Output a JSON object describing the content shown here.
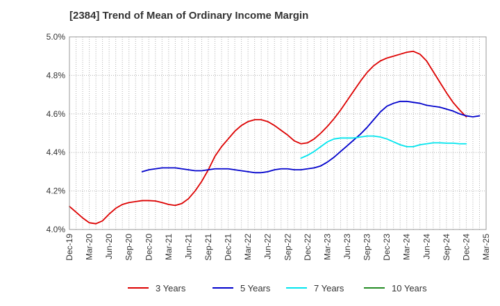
{
  "chart_data": {
    "type": "line",
    "title": "[2384]  Trend of Mean of Ordinary Income Margin",
    "xlabel": "",
    "ylabel": "",
    "x_start": "2019-12",
    "x_tick_labels": [
      "Dec-19",
      "Mar-20",
      "Jun-20",
      "Sep-20",
      "Dec-20",
      "Mar-21",
      "Jun-21",
      "Sep-21",
      "Dec-21",
      "Mar-22",
      "Jun-22",
      "Sep-22",
      "Dec-22",
      "Mar-23",
      "Jun-23",
      "Sep-23",
      "Dec-23",
      "Mar-24",
      "Jun-24",
      "Sep-24",
      "Dec-24",
      "Mar-25"
    ],
    "ylim": [
      4.0,
      5.0
    ],
    "y_ticks": [
      4.0,
      4.2,
      4.4,
      4.6,
      4.8,
      5.0
    ],
    "y_tick_labels": [
      "4.0%",
      "4.2%",
      "4.4%",
      "4.6%",
      "4.8%",
      "5.0%"
    ],
    "grid": true,
    "legend_position": "bottom",
    "series": [
      {
        "name": "3 Years",
        "color": "#dd0000",
        "start": "2019-12",
        "values": [
          4.12,
          4.09,
          4.06,
          4.035,
          4.03,
          4.045,
          4.08,
          4.11,
          4.13,
          4.14,
          4.145,
          4.15,
          4.15,
          4.148,
          4.14,
          4.13,
          4.125,
          4.135,
          4.16,
          4.2,
          4.25,
          4.31,
          4.38,
          4.43,
          4.47,
          4.51,
          4.54,
          4.56,
          4.57,
          4.57,
          4.56,
          4.54,
          4.515,
          4.49,
          4.46,
          4.445,
          4.45,
          4.47,
          4.5,
          4.535,
          4.575,
          4.62,
          4.67,
          4.72,
          4.77,
          4.815,
          4.85,
          4.875,
          4.89,
          4.9,
          4.91,
          4.92,
          4.925,
          4.91,
          4.875,
          4.82,
          4.765,
          4.71,
          4.66,
          4.62,
          4.585
        ]
      },
      {
        "name": "5 Years",
        "color": "#0000cc",
        "start": "2020-11",
        "values": [
          4.3,
          4.31,
          4.315,
          4.32,
          4.32,
          4.32,
          4.315,
          4.31,
          4.305,
          4.305,
          4.31,
          4.315,
          4.315,
          4.315,
          4.31,
          4.305,
          4.3,
          4.295,
          4.295,
          4.3,
          4.31,
          4.315,
          4.315,
          4.31,
          4.31,
          4.315,
          4.32,
          4.33,
          4.35,
          4.375,
          4.405,
          4.435,
          4.465,
          4.495,
          4.53,
          4.57,
          4.61,
          4.64,
          4.655,
          4.665,
          4.665,
          4.66,
          4.655,
          4.645,
          4.64,
          4.635,
          4.625,
          4.615,
          4.6,
          4.59,
          4.585,
          4.59
        ]
      },
      {
        "name": "7 Years",
        "color": "#00e5ee",
        "start": "2022-11",
        "values": [
          4.37,
          4.385,
          4.405,
          4.43,
          4.455,
          4.47,
          4.475,
          4.475,
          4.475,
          4.48,
          4.485,
          4.485,
          4.48,
          4.47,
          4.455,
          4.44,
          4.43,
          4.43,
          4.44,
          4.445,
          4.45,
          4.45,
          4.448,
          4.448,
          4.445,
          4.445
        ]
      },
      {
        "name": "10 Years",
        "color": "#228b22",
        "start": "2024-12",
        "values": []
      }
    ]
  }
}
